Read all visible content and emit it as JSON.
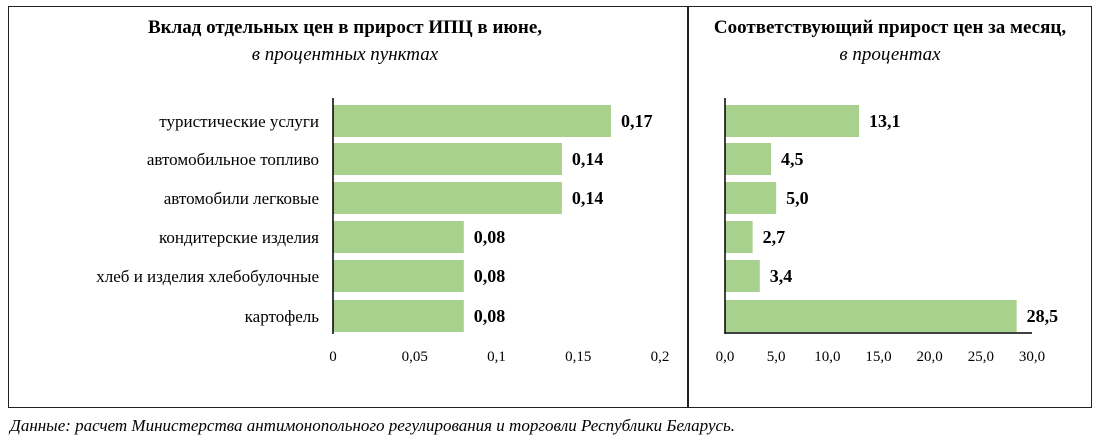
{
  "chart_data": [
    {
      "type": "bar",
      "orientation": "horizontal",
      "title": "Вклад отдельных цен в прирост ИПЦ в июне,",
      "subtitle": "в процентных пунктах",
      "categories": [
        "туристические услуги",
        "автомобильное топливо",
        "автомобили легковые",
        "кондитерские изделия",
        "хлеб и изделия хлебобулочные",
        "картофель"
      ],
      "values": [
        0.17,
        0.14,
        0.14,
        0.08,
        0.08,
        0.08
      ],
      "value_labels": [
        "0,17",
        "0,14",
        "0,14",
        "0,08",
        "0,08",
        "0,08"
      ],
      "xlim": [
        0,
        0.2
      ],
      "ticks": [
        0,
        0.05,
        0.1,
        0.15,
        0.2
      ],
      "tick_labels": [
        "0",
        "0,05",
        "0,1",
        "0,15",
        "0,2"
      ],
      "color": "#a9d18e"
    },
    {
      "type": "bar",
      "orientation": "horizontal",
      "title": "Соответствующий прирост цен за месяц,",
      "subtitle": "в процентах",
      "values": [
        13.1,
        4.5,
        5.0,
        2.7,
        3.4,
        28.5
      ],
      "value_labels": [
        "13,1",
        "4,5",
        "5,0",
        "2,7",
        "3,4",
        "28,5"
      ],
      "xlim": [
        0,
        30
      ],
      "ticks": [
        0,
        5,
        10,
        15,
        20,
        25,
        30
      ],
      "tick_labels": [
        "0,0",
        "5,0",
        "10,0",
        "15,0",
        "20,0",
        "25,0",
        "30,0"
      ],
      "color": "#a9d18e"
    }
  ],
  "footnote": "Данные: расчет Министерства антимонопольного регулирования и торговли Республики Беларусь."
}
